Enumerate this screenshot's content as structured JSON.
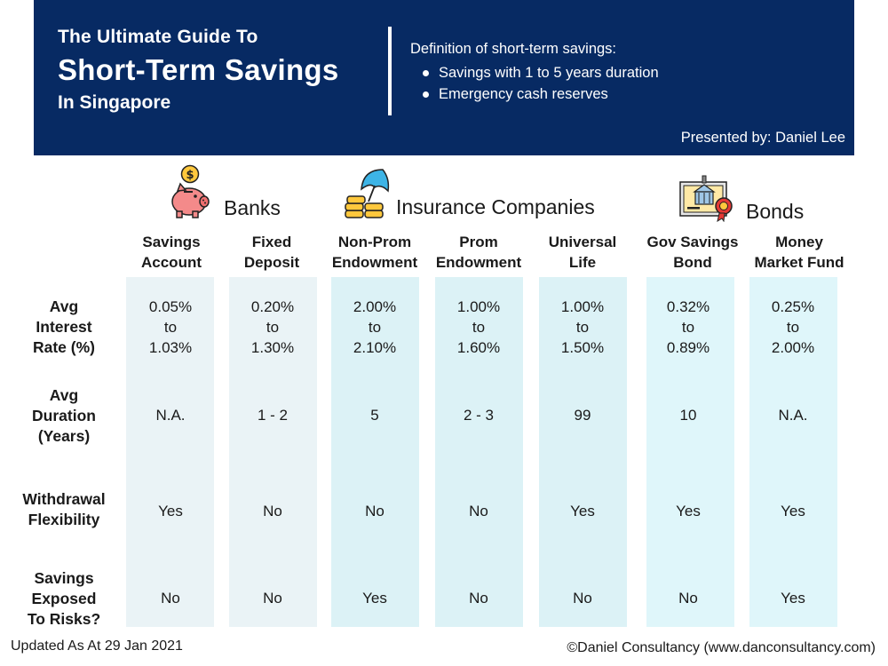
{
  "header": {
    "title_line1": "The Ultimate Guide To",
    "title_line2": "Short-Term Savings",
    "title_line3": "In Singapore",
    "definition_title": "Definition of short-term savings:",
    "definition_items": [
      "Savings with 1 to 5 years duration",
      "Emergency cash reserves"
    ],
    "presenter": "Presented by: Daniel Lee"
  },
  "categories": [
    {
      "label": "Banks",
      "icon": "piggy-bank-icon"
    },
    {
      "label": "Insurance Companies",
      "icon": "umbrella-coins-icon"
    },
    {
      "label": "Bonds",
      "icon": "bond-certificate-icon"
    }
  ],
  "columns": [
    {
      "line1": "Savings",
      "line2": "Account"
    },
    {
      "line1": "Fixed",
      "line2": "Deposit"
    },
    {
      "line1": "Non-Prom",
      "line2": "Endowment"
    },
    {
      "line1": "Prom",
      "line2": "Endowment"
    },
    {
      "line1": "Universal",
      "line2": "Life"
    },
    {
      "line1": "Gov Savings",
      "line2": "Bond"
    },
    {
      "line1": "Money",
      "line2": "Market Fund"
    }
  ],
  "rows": [
    {
      "label": [
        "Avg",
        "Interest",
        "Rate (%)"
      ]
    },
    {
      "label": [
        "Avg",
        "Duration",
        "(Years)"
      ]
    },
    {
      "label": [
        "Withdrawal",
        "Flexibility"
      ]
    },
    {
      "label": [
        "Savings",
        "Exposed",
        "To Risks?"
      ]
    }
  ],
  "interest_rates": [
    [
      "0.05%",
      "to",
      "1.03%"
    ],
    [
      "0.20%",
      "to",
      "1.30%"
    ],
    [
      "2.00%",
      "to",
      "2.10%"
    ],
    [
      "1.00%",
      "to",
      "1.60%"
    ],
    [
      "1.00%",
      "to",
      "1.50%"
    ],
    [
      "0.32%",
      "to",
      "0.89%"
    ],
    [
      "0.25%",
      "to",
      "2.00%"
    ]
  ],
  "durations": [
    "N.A.",
    "1 - 2",
    "5",
    "2 - 3",
    "99",
    "10",
    "N.A."
  ],
  "withdrawal": [
    "Yes",
    "No",
    "No",
    "No",
    "Yes",
    "Yes",
    "Yes"
  ],
  "risk": [
    "No",
    "No",
    "Yes",
    "No",
    "No",
    "No",
    "Yes"
  ],
  "footer": {
    "updated": "Updated As At 29 Jan 2021",
    "copyright": "©Daniel Consultancy (www.danconsultancy.com)"
  },
  "colors": {
    "banner": "#072a63",
    "bank_column": "#eaf3f6",
    "insurance_column": "#dcf2f6",
    "bond_column": "#dff6fa"
  }
}
